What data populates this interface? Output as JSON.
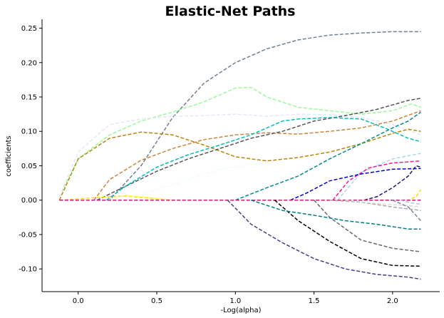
{
  "chart_data": {
    "type": "line",
    "title": "Elastic-Net Paths",
    "xlabel": "-Log(alpha)",
    "ylabel": "coefficients",
    "xlim": [
      -0.23,
      2.3
    ],
    "ylim": [
      -0.133,
      0.263
    ],
    "xticks": [
      "0.0",
      "0.5",
      "1.0",
      "1.5",
      "2.0"
    ],
    "xtick_values": [
      0.0,
      0.5,
      1.0,
      1.5,
      2.0
    ],
    "yticks": [
      "-0.10",
      "-0.05",
      "0.00",
      "0.05",
      "0.10",
      "0.15",
      "0.20",
      "0.25"
    ],
    "ytick_values": [
      -0.1,
      -0.05,
      0.0,
      0.05,
      0.1,
      0.15,
      0.2,
      0.25
    ],
    "grid": false,
    "line_style": "dashed",
    "series": [
      {
        "color": "#708090",
        "x": [
          -0.12,
          0.2,
          0.4,
          0.6,
          0.8,
          1.0,
          1.2,
          1.4,
          1.6,
          1.8,
          2.0,
          2.18
        ],
        "y": [
          0.0,
          0.0,
          0.05,
          0.12,
          0.17,
          0.2,
          0.22,
          0.233,
          0.24,
          0.243,
          0.245,
          0.245
        ]
      },
      {
        "color": "#98fb98",
        "x": [
          -0.12,
          0.0,
          0.2,
          0.4,
          0.6,
          0.8,
          1.0,
          1.1,
          1.2,
          1.4,
          1.6,
          1.8,
          2.0,
          2.12,
          2.18
        ],
        "y": [
          0.005,
          0.06,
          0.095,
          0.115,
          0.128,
          0.143,
          0.163,
          0.164,
          0.15,
          0.135,
          0.13,
          0.125,
          0.13,
          0.14,
          0.135
        ]
      },
      {
        "color": "#e6e6fa",
        "x": [
          -0.12,
          0.0,
          0.2,
          0.4,
          0.6,
          0.8,
          1.0,
          1.2,
          1.4,
          1.6,
          1.8,
          2.0,
          2.18
        ],
        "y": [
          0.005,
          0.07,
          0.11,
          0.118,
          0.122,
          0.123,
          0.125,
          0.122,
          0.125,
          0.124,
          0.12,
          0.11,
          0.095
        ]
      },
      {
        "color": "#b8860b",
        "x": [
          -0.12,
          0.0,
          0.2,
          0.4,
          0.6,
          0.8,
          1.0,
          1.2,
          1.4,
          1.6,
          1.8,
          2.0,
          2.1,
          2.18
        ],
        "y": [
          0.0,
          0.06,
          0.09,
          0.099,
          0.095,
          0.08,
          0.063,
          0.057,
          0.062,
          0.07,
          0.082,
          0.097,
          0.103,
          0.1
        ]
      },
      {
        "color": "#cd853f",
        "x": [
          0.1,
          0.2,
          0.4,
          0.6,
          0.8,
          1.0,
          1.2,
          1.4,
          1.6,
          1.8,
          2.0,
          2.18
        ],
        "y": [
          0.0,
          0.03,
          0.058,
          0.075,
          0.088,
          0.095,
          0.098,
          0.096,
          0.1,
          0.105,
          0.115,
          0.13
        ]
      },
      {
        "color": "#555555",
        "x": [
          0.12,
          0.3,
          0.5,
          0.7,
          0.9,
          1.1,
          1.3,
          1.5,
          1.7,
          1.9,
          2.1,
          2.18
        ],
        "y": [
          0.0,
          0.02,
          0.042,
          0.06,
          0.075,
          0.09,
          0.1,
          0.115,
          0.123,
          0.132,
          0.145,
          0.148
        ]
      },
      {
        "color": "#00bfbf",
        "x": [
          0.18,
          0.3,
          0.5,
          0.7,
          0.9,
          1.1,
          1.3,
          1.4,
          1.6,
          1.8,
          1.95,
          2.1,
          2.18
        ],
        "y": [
          0.0,
          0.02,
          0.048,
          0.066,
          0.08,
          0.095,
          0.115,
          0.118,
          0.12,
          0.118,
          0.105,
          0.09,
          0.085
        ]
      },
      {
        "color": "#f0fff0",
        "x": [
          0.3,
          0.5,
          0.7,
          0.9,
          1.1,
          1.3
        ],
        "y": [
          0.0,
          0.015,
          0.03,
          0.045,
          0.052,
          0.055
        ]
      },
      {
        "color": "#008b8b",
        "x": [
          1.0,
          1.2,
          1.4,
          1.6,
          1.8,
          2.0,
          2.1,
          2.18
        ],
        "y": [
          0.0,
          0.018,
          0.035,
          0.06,
          0.082,
          0.105,
          0.115,
          0.128
        ]
      },
      {
        "color": "#add8e6",
        "x": [
          1.65,
          1.8,
          2.0,
          2.18
        ],
        "y": [
          0.0,
          0.04,
          0.06,
          0.068
        ]
      },
      {
        "color": "#ff1493",
        "x": [
          1.62,
          1.72,
          1.85,
          2.0,
          2.18
        ],
        "y": [
          0.0,
          0.028,
          0.047,
          0.054,
          0.057
        ]
      },
      {
        "color": "#0000cd",
        "x": [
          1.35,
          1.45,
          1.6,
          1.8,
          2.0,
          2.18
        ],
        "y": [
          0.0,
          0.01,
          0.028,
          0.038,
          0.045,
          0.046
        ]
      },
      {
        "color": "#191970",
        "x": [
          1.82,
          1.9,
          2.0,
          2.1,
          2.15,
          2.18
        ],
        "y": [
          0.0,
          0.005,
          0.018,
          0.035,
          0.05,
          0.048
        ]
      },
      {
        "color": "#ffd700",
        "x": [
          -0.12,
          0.2,
          0.3,
          0.5,
          0.6,
          2.1,
          2.15,
          2.18
        ],
        "y": [
          0.0,
          0.005,
          0.006,
          0.002,
          0.0,
          0.0,
          0.005,
          0.015
        ]
      },
      {
        "color": "#ffff66",
        "x": [
          0.2,
          0.3,
          0.45,
          0.6
        ],
        "y": [
          0.0,
          0.007,
          0.004,
          0.0
        ]
      },
      {
        "color": "#c71585",
        "x": [
          -0.12,
          2.18
        ],
        "y": [
          0.0,
          0.0
        ]
      },
      {
        "color": "#483d8b",
        "x": [
          0.95,
          1.1,
          1.3,
          1.5,
          1.7,
          1.9,
          2.1,
          2.18
        ],
        "y": [
          0.0,
          -0.035,
          -0.062,
          -0.085,
          -0.1,
          -0.108,
          -0.112,
          -0.115
        ]
      },
      {
        "color": "#000000",
        "x": [
          1.25,
          1.4,
          1.6,
          1.8,
          2.0,
          2.18
        ],
        "y": [
          0.0,
          -0.03,
          -0.06,
          -0.085,
          -0.095,
          -0.096
        ]
      },
      {
        "color": "#696969",
        "x": [
          1.5,
          1.6,
          1.8,
          2.0,
          2.18
        ],
        "y": [
          0.0,
          -0.025,
          -0.058,
          -0.07,
          -0.075
        ]
      },
      {
        "color": "#008080",
        "x": [
          1.1,
          1.3,
          1.5,
          1.7,
          1.9,
          2.1,
          2.18
        ],
        "y": [
          0.0,
          -0.015,
          -0.022,
          -0.03,
          -0.035,
          -0.042,
          -0.042
        ]
      },
      {
        "color": "#a9a9a9",
        "x": [
          1.6,
          1.8,
          2.0,
          2.18
        ],
        "y": [
          0.0,
          -0.003,
          -0.01,
          -0.015
        ]
      },
      {
        "color": "#dcdcdc",
        "x": [
          1.7,
          1.9,
          2.1,
          2.18
        ],
        "y": [
          0.0,
          -0.005,
          -0.008,
          -0.01
        ]
      },
      {
        "color": "#778899",
        "x": [
          2.0,
          2.1,
          2.18
        ],
        "y": [
          0.0,
          -0.01,
          -0.03
        ]
      },
      {
        "color": "#b0c4de",
        "x": [
          2.05,
          2.12,
          2.18
        ],
        "y": [
          0.0,
          -0.004,
          -0.006
        ]
      }
    ]
  }
}
